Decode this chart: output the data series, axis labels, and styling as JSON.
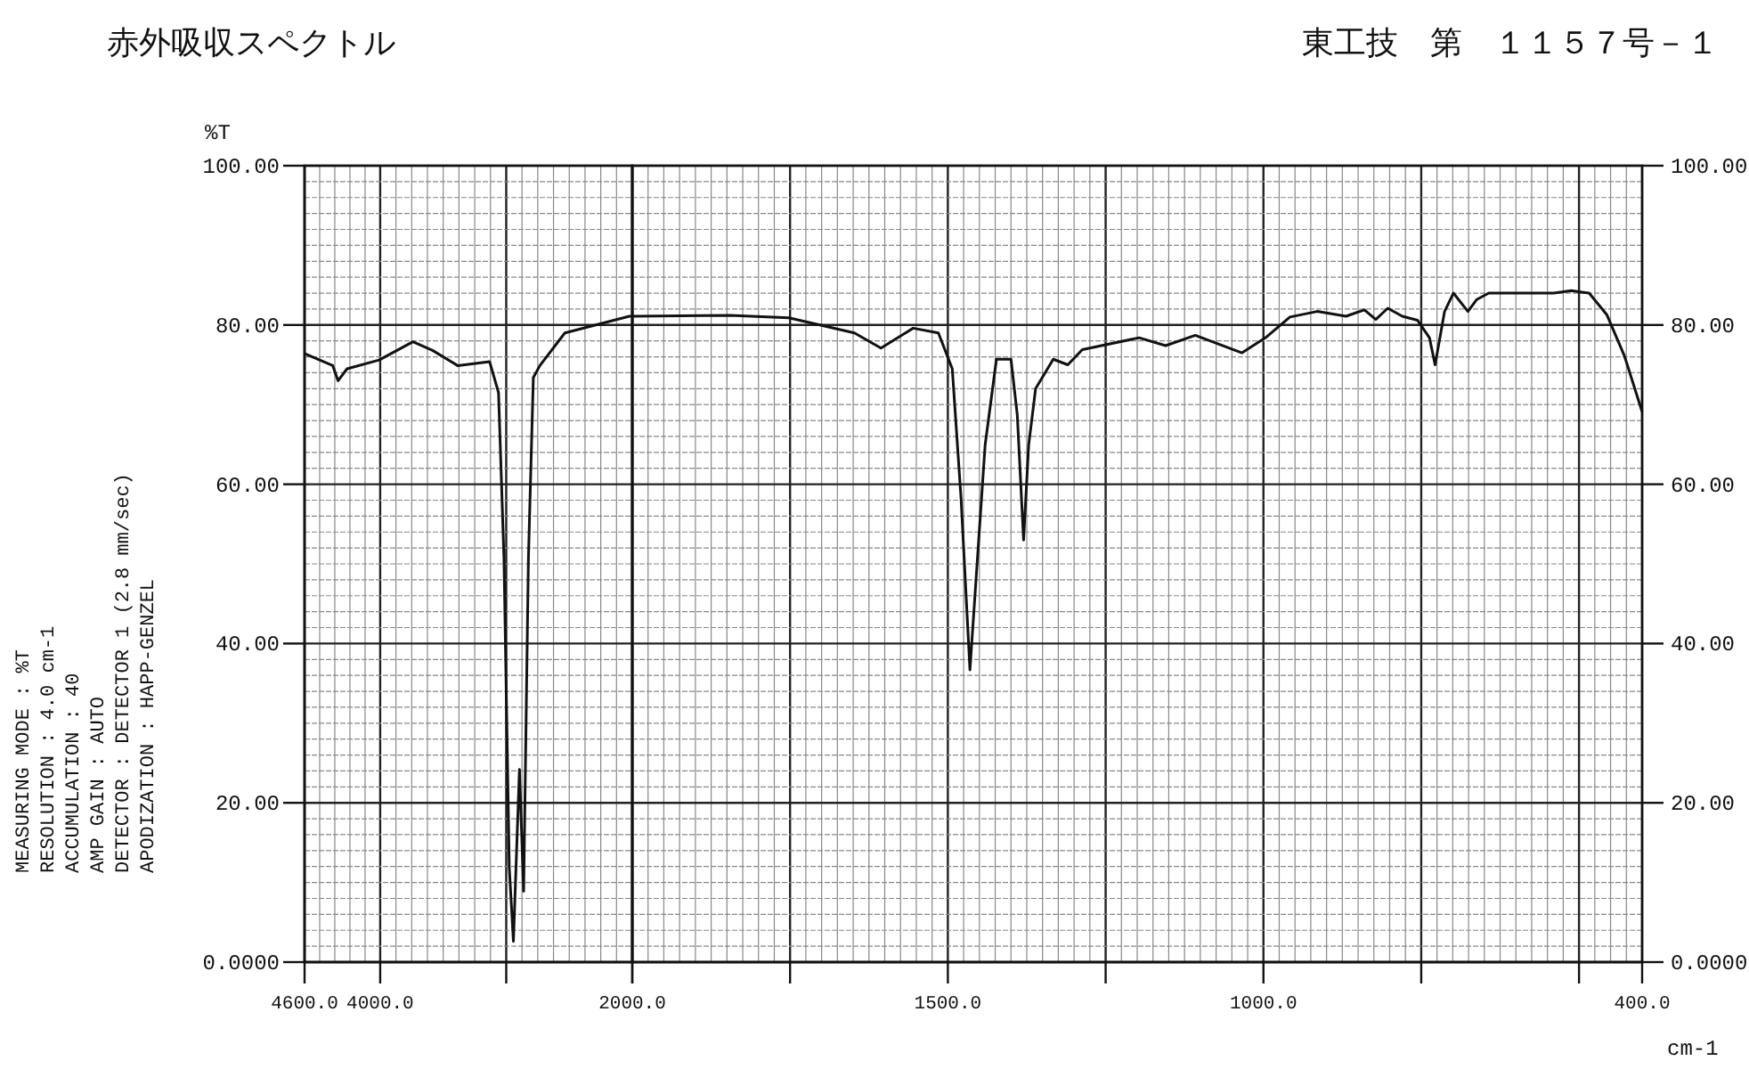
{
  "chart_data": [
    {
      "type": "line",
      "title": "赤外吸収スペクトル",
      "ylabel": "%T",
      "annotations": [
        "東工技　第　１１５７号－１",
        "MEASURING MODE : %T",
        "RESOLUTION : 4.0 cm-1",
        "ACCUMULATION : 40",
        "AMP GAIN : AUTO",
        "DETECTOR : DETECTOR 1 (2.8 mm/sec)",
        "APODIZATION : HAPP-GENZEL"
      ],
      "x": [
        4600,
        4376,
        4334,
        4263,
        4008,
        3740,
        3584,
        3386,
        3132,
        3061,
        3018,
        2976,
        2943,
        2895,
        2862,
        2824,
        2785,
        2733,
        2535,
        2023,
        2000
      ],
      "series": [
        {
          "color": "#111111",
          "values": [
            76.4,
            74.9,
            73.0,
            74.5,
            75.6,
            77.9,
            76.8,
            74.9,
            75.4,
            71.5,
            50.7,
            11.9,
            2.6,
            24.2,
            8.9,
            50.7,
            73.4,
            74.9,
            79.0,
            81.1,
            81.1
          ]
        }
      ],
      "xlim": [
        4600,
        2000
      ],
      "xticks": [
        {
          "value": 4600,
          "label": "4600.0"
        },
        {
          "value": 4000,
          "label": "4000.0"
        },
        {
          "value": 3000,
          "label": null
        },
        {
          "value": 2000,
          "label": null
        }
      ],
      "ylim": [
        0,
        100
      ],
      "yticks": [
        {
          "value": 0,
          "label": "0.0000"
        },
        {
          "value": 20,
          "label": "20.00"
        },
        {
          "value": 40,
          "label": "40.00"
        },
        {
          "value": 60,
          "label": "60.00"
        },
        {
          "value": 80,
          "label": "80.00"
        },
        {
          "value": 100,
          "label": "100.00"
        }
      ],
      "grid": true
    },
    {
      "type": "line",
      "xlabel": "cm-1",
      "x": [
        2000,
        1845,
        1752,
        1648,
        1606,
        1555,
        1515,
        1493,
        1479,
        1465,
        1441,
        1423,
        1400,
        1390,
        1380,
        1372,
        1361,
        1333,
        1310,
        1287,
        1197,
        1155,
        1108,
        1034,
        995,
        958,
        915,
        869,
        840,
        822,
        803,
        780,
        756,
        737,
        728,
        713,
        699,
        676,
        662,
        643,
        540,
        512,
        484,
        456,
        428,
        400
      ],
      "series": [
        {
          "color": "#111111",
          "axis": "y2",
          "values": [
            81.1,
            81.2,
            80.9,
            79.0,
            77.1,
            79.6,
            79.0,
            74.5,
            58.1,
            36.7,
            64.9,
            75.7,
            75.7,
            68.7,
            53.0,
            64.9,
            72.0,
            75.7,
            75.0,
            76.9,
            78.4,
            77.4,
            78.7,
            76.5,
            78.5,
            81.0,
            81.7,
            81.1,
            81.9,
            80.7,
            82.1,
            81.1,
            80.6,
            78.4,
            75.0,
            81.7,
            84.0,
            81.7,
            83.2,
            84.0,
            84.0,
            84.3,
            84.0,
            81.3,
            76.1,
            69.1
          ]
        }
      ],
      "xlim": [
        2000,
        400
      ],
      "xticks": [
        {
          "value": 2000,
          "label": "2000.0"
        },
        {
          "value": 1750,
          "label": null
        },
        {
          "value": 1500,
          "label": "1500.0"
        },
        {
          "value": 1250,
          "label": null
        },
        {
          "value": 1000,
          "label": "1000.0"
        },
        {
          "value": 750,
          "label": null
        },
        {
          "value": 500,
          "label": null
        },
        {
          "value": 400,
          "label": "400.0"
        }
      ],
      "y2lim": [
        0,
        100
      ],
      "y2ticks": [
        {
          "value": 0,
          "label": "0.0000"
        },
        {
          "value": 20,
          "label": "20.00"
        },
        {
          "value": 40,
          "label": "40.00"
        },
        {
          "value": 60,
          "label": "60.00"
        },
        {
          "value": 80,
          "label": "80.00"
        },
        {
          "value": 100,
          "label": "100.00"
        }
      ],
      "grid": true
    }
  ]
}
